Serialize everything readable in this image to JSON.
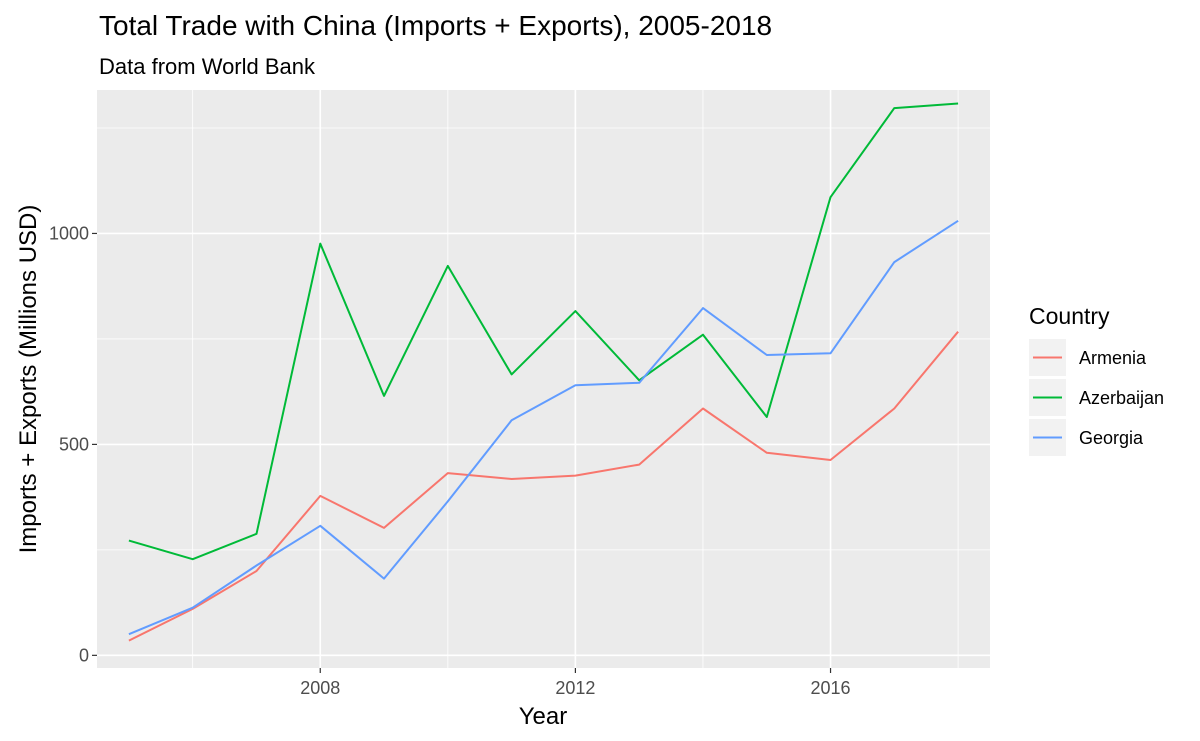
{
  "chart_data": {
    "type": "line",
    "title": "Total Trade with China (Imports + Exports), 2005-2018",
    "subtitle": "Data from World Bank",
    "xlabel": "Year",
    "ylabel": "Imports + Exports (Millions USD)",
    "xlim": [
      2004.5,
      2018.5
    ],
    "ylim": [
      -30,
      1340
    ],
    "x_ticks": [
      2008,
      2012,
      2016
    ],
    "y_ticks": [
      0,
      500,
      1000
    ],
    "grid": true,
    "legend": {
      "title": "Country",
      "position": "right"
    },
    "x": [
      2005,
      2006,
      2007,
      2008,
      2009,
      2010,
      2011,
      2012,
      2013,
      2014,
      2015,
      2016,
      2017,
      2018
    ],
    "series": [
      {
        "name": "Armenia",
        "color": "#F8766D",
        "values": [
          35,
          110,
          200,
          378,
          302,
          432,
          418,
          426,
          452,
          585,
          480,
          463,
          585,
          767
        ]
      },
      {
        "name": "Azerbaijan",
        "color": "#00BA38",
        "values": [
          272,
          228,
          288,
          976,
          615,
          923,
          666,
          816,
          652,
          760,
          565,
          1086,
          1297,
          1308
        ]
      },
      {
        "name": "Georgia",
        "color": "#619CFF",
        "values": [
          50,
          113,
          213,
          307,
          182,
          365,
          557,
          640,
          646,
          823,
          712,
          716,
          932,
          1030
        ]
      }
    ]
  }
}
